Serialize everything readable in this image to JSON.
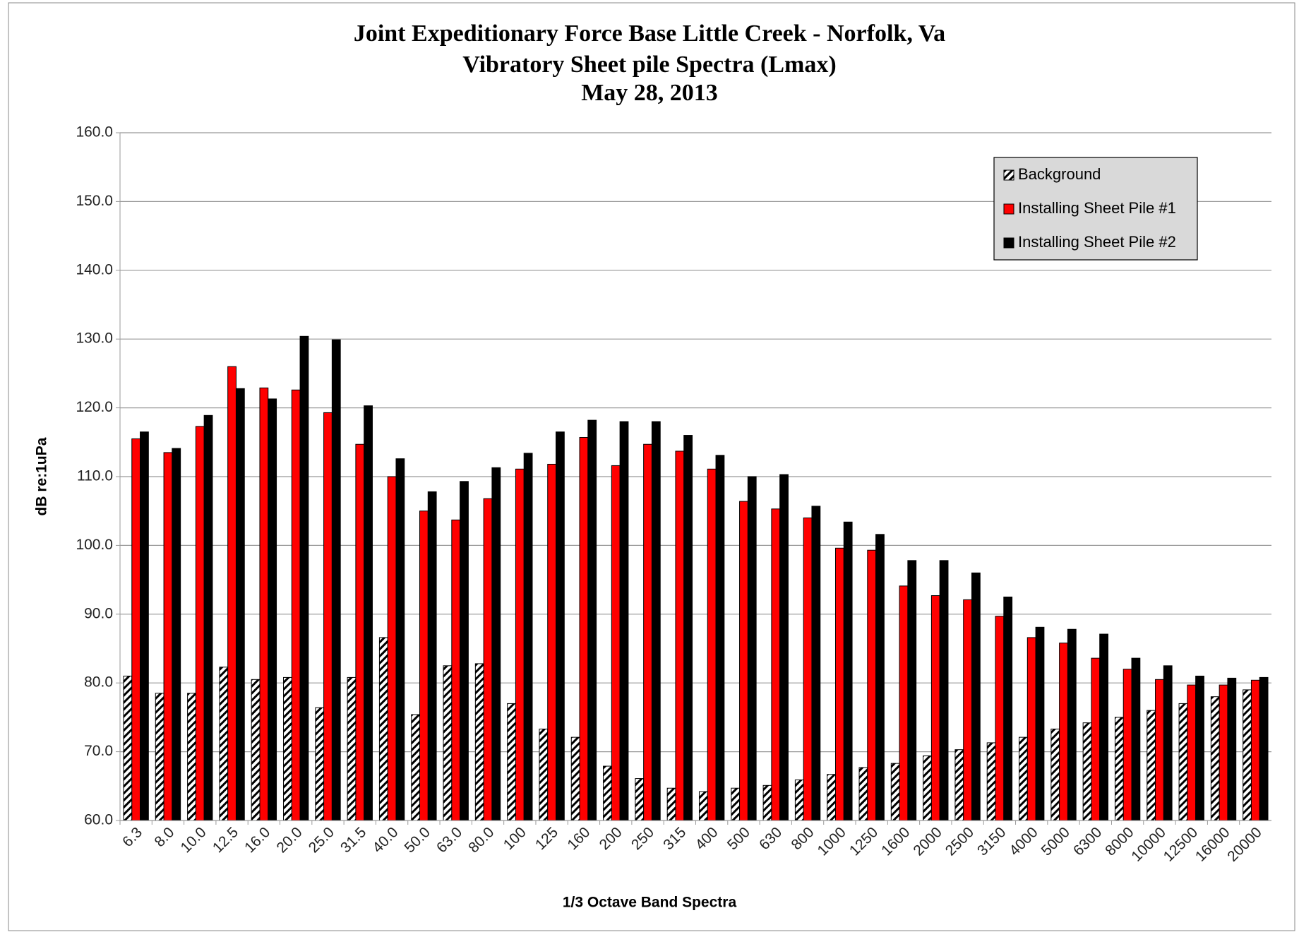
{
  "chart_data": {
    "type": "bar",
    "title": [
      "Joint Expeditionary  Force Base Little  Creek - Norfolk, Va",
      "Vibratory  Sheet pile  Spectra (Lmax)",
      "May 28, 2013"
    ],
    "x_label": "1/3 Octave Band Spectra",
    "y_label": "dB re:1uPa",
    "categories": [
      "6.3",
      "8.0",
      "10.0",
      "12.5",
      "16.0",
      "20.0",
      "25.0",
      "31.5",
      "40.0",
      "50.0",
      "63.0",
      "80.0",
      "100",
      "125",
      "160",
      "200",
      "250",
      "315",
      "400",
      "500",
      "630",
      "800",
      "1000",
      "1250",
      "1600",
      "2000",
      "2500",
      "3150",
      "4000",
      "5000",
      "6300",
      "8000",
      "10000",
      "12500",
      "16000",
      "20000"
    ],
    "series": [
      {
        "name": "Background",
        "color": "#ffffff",
        "pattern": "hatch",
        "values": [
          81.0,
          78.5,
          78.5,
          82.3,
          80.5,
          80.8,
          76.4,
          80.8,
          86.6,
          75.4,
          82.5,
          82.8,
          77.0,
          73.3,
          72.1,
          67.9,
          66.1,
          64.7,
          64.2,
          64.7,
          65.1,
          65.9,
          66.7,
          67.7,
          68.3,
          69.4,
          70.3,
          71.3,
          72.1,
          73.3,
          74.2,
          75.0,
          76.0,
          77.0,
          78.0,
          79.0
        ]
      },
      {
        "name": "Installing Sheet Pile #1",
        "color": "#ff0000",
        "values": [
          115.5,
          113.5,
          117.3,
          126.0,
          122.9,
          122.6,
          119.3,
          114.7,
          110.0,
          105.0,
          103.7,
          106.8,
          111.1,
          111.8,
          115.7,
          111.6,
          114.7,
          113.7,
          111.1,
          106.4,
          105.3,
          104.0,
          99.6,
          99.3,
          94.1,
          92.7,
          92.1,
          89.7,
          86.6,
          85.8,
          83.6,
          82.0,
          80.5,
          79.7,
          79.7,
          80.4
        ]
      },
      {
        "name": "Installing Sheet Pile #2",
        "color": "#000000",
        "values": [
          116.5,
          114.1,
          118.9,
          122.8,
          121.3,
          130.4,
          129.9,
          120.3,
          112.6,
          107.8,
          109.3,
          111.3,
          113.4,
          116.5,
          118.2,
          118.0,
          118.0,
          116.0,
          113.1,
          110.0,
          110.3,
          105.7,
          103.4,
          101.6,
          97.8,
          97.8,
          96.0,
          92.5,
          88.1,
          87.8,
          87.1,
          83.6,
          82.5,
          81.0,
          80.7,
          80.8
        ]
      }
    ],
    "ylim": [
      60,
      160
    ],
    "yticks": [
      {
        "value": 60,
        "label": "60.0"
      },
      {
        "value": 70,
        "label": "70.0"
      },
      {
        "value": 80,
        "label": "80.0"
      },
      {
        "value": 90,
        "label": "90.0"
      },
      {
        "value": 100,
        "label": "100.0"
      },
      {
        "value": 110,
        "label": "110.0"
      },
      {
        "value": 120,
        "label": "120.0"
      },
      {
        "value": 130,
        "label": "130.0"
      },
      {
        "value": 140,
        "label": "140.0"
      },
      {
        "value": 150,
        "label": "150.0"
      },
      {
        "value": 160,
        "label": "160.0"
      }
    ],
    "grid": true,
    "legend": "upper right"
  }
}
